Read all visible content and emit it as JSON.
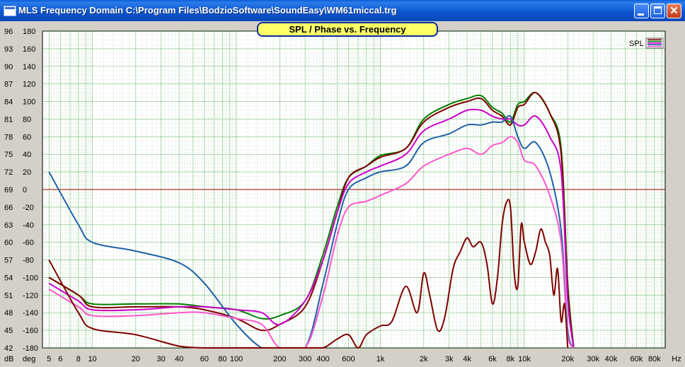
{
  "window": {
    "title": "MLS Frequency Domain  C:\\Program Files\\BodzioSoftware\\SoundEasy\\WM61miccal.trg"
  },
  "colors": {
    "plot_bg": "#FFFFFF",
    "grid_green": "#008000",
    "zero_line": "#A00000",
    "title_bg": "#FFFF66"
  },
  "chart_data": {
    "type": "line",
    "title": "SPL / Phase vs. Frequency",
    "x_scale": "log",
    "xlim": [
      4.5,
      95000
    ],
    "xlabel": "Hz",
    "x_ticks": [
      5,
      6,
      8,
      10,
      20,
      30,
      40,
      60,
      80,
      100,
      200,
      300,
      400,
      600,
      1000,
      2000,
      3000,
      4000,
      6000,
      8000,
      10000,
      20000,
      30000,
      40000,
      60000,
      80000
    ],
    "x_tick_labels": [
      "5",
      "6",
      "8",
      "10",
      "20",
      "30",
      "40",
      "60",
      "80",
      "100",
      "200",
      "300",
      "400",
      "600",
      "1k",
      "2k",
      "3k",
      "4k",
      "6k",
      "8k",
      "10k",
      "20k",
      "30k",
      "40k",
      "60k",
      "80k"
    ],
    "y_left_label": "dB",
    "y_left_ticks": [
      "96",
      "93",
      "90",
      "87",
      "84",
      "81",
      "78",
      "75",
      "72",
      "69",
      "66",
      "63",
      "60",
      "57",
      "54",
      "51",
      "48",
      "45",
      "42"
    ],
    "ylim_db": [
      42,
      96
    ],
    "y_right_label": "deg",
    "y_right_ticks": [
      "180",
      "160",
      "140",
      "120",
      "100",
      "80",
      "60",
      "40",
      "20",
      "0",
      "-20",
      "-40",
      "-60",
      "-80",
      "-100",
      "-120",
      "-140",
      "-160",
      "-180"
    ],
    "ylim_deg": [
      -180,
      180
    ],
    "legend": {
      "label": "SPL",
      "position": "top-right"
    },
    "series": [
      {
        "color": "#008000",
        "unit": "dB",
        "x": [
          5,
          8,
          10,
          20,
          40,
          60,
          100,
          150,
          200,
          300,
          400,
          500,
          600,
          800,
          1000,
          1500,
          2000,
          3000,
          4000,
          5000,
          6000,
          7000,
          8000,
          9000,
          10000,
          12000,
          15000,
          18000,
          20000,
          22000
        ],
        "values": [
          54,
          51,
          49.5,
          49.5,
          49.5,
          49,
          48.5,
          47,
          47.5,
          50,
          58,
          66,
          71,
          73,
          74.8,
          76,
          81,
          83.5,
          84.5,
          85,
          83,
          82,
          80.5,
          83.5,
          84,
          85.5,
          82,
          76,
          53,
          42
        ]
      },
      {
        "color": "#800000",
        "unit": "dB",
        "x": [
          5,
          8,
          10,
          20,
          40,
          60,
          100,
          150,
          200,
          300,
          400,
          500,
          600,
          800,
          1000,
          1500,
          2000,
          3000,
          4000,
          5000,
          6000,
          7000,
          8000,
          9000,
          10000,
          12000,
          15000,
          18000,
          20000,
          22000
        ],
        "values": [
          54,
          51,
          49,
          49,
          49,
          48.5,
          47,
          45,
          46,
          49,
          57,
          65,
          71,
          73,
          74.5,
          76,
          80.5,
          83,
          84,
          84.5,
          82.5,
          81.5,
          80,
          83,
          83.5,
          85.5,
          82,
          75,
          52,
          42
        ]
      },
      {
        "color": "#CC00CC",
        "unit": "dB",
        "x": [
          5,
          8,
          10,
          20,
          40,
          60,
          100,
          150,
          200,
          300,
          400,
          500,
          600,
          800,
          1000,
          1500,
          2000,
          3000,
          4000,
          5000,
          6000,
          7000,
          8000,
          9000,
          10000,
          12000,
          15000,
          18000,
          20000,
          22000
        ],
        "values": [
          53,
          50,
          48.5,
          48.5,
          49,
          49,
          48.5,
          48,
          46,
          50,
          57,
          65,
          70,
          72,
          73,
          75,
          79,
          81,
          82.5,
          82.5,
          81.5,
          81,
          81,
          80,
          80,
          81.5,
          78,
          72,
          50,
          42
        ]
      },
      {
        "color": "#2060A8",
        "unit": "dB",
        "x": [
          5,
          8,
          10,
          20,
          40,
          60,
          100,
          150,
          200,
          300,
          400,
          500,
          600,
          800,
          1000,
          1500,
          2000,
          3000,
          4000,
          5000,
          6000,
          7000,
          8000,
          9000,
          10000,
          12000,
          15000,
          18000,
          20000,
          22000
        ],
        "values": [
          72,
          63,
          60,
          58.5,
          56.5,
          53,
          46,
          40,
          36,
          40,
          53,
          63,
          69,
          71,
          72,
          73,
          77,
          78.5,
          80,
          80,
          80.5,
          80.5,
          81.5,
          78,
          76,
          77,
          72,
          62,
          45,
          42
        ]
      },
      {
        "color": "#FF55CC",
        "unit": "dB",
        "x": [
          5,
          8,
          10,
          20,
          40,
          60,
          100,
          150,
          200,
          300,
          400,
          500,
          600,
          800,
          1000,
          1500,
          2000,
          3000,
          4000,
          5000,
          6000,
          7000,
          8000,
          9000,
          10000,
          12000,
          15000,
          18000,
          20000,
          22000
        ],
        "values": [
          52,
          49,
          47.5,
          47.5,
          48,
          48,
          47,
          46,
          40,
          41,
          51,
          61,
          66,
          67,
          68,
          70,
          73,
          75,
          76,
          75,
          76.5,
          77,
          78,
          77,
          74,
          73,
          68,
          60,
          44,
          42
        ]
      },
      {
        "color": "#800000",
        "unit": "deg",
        "x": [
          5,
          8,
          10,
          20,
          40,
          60,
          80,
          100,
          150,
          200,
          300,
          400,
          500,
          600,
          700,
          800,
          1000,
          1200,
          1500,
          1800,
          2000,
          2200,
          2500,
          2800,
          3200,
          3600,
          4000,
          4400,
          5000,
          5500,
          6000,
          6500,
          7000,
          7500,
          8000,
          8500,
          9000,
          9500,
          10000,
          11000,
          12000,
          13000,
          14000,
          15000,
          16000,
          17000,
          18000,
          19000,
          20000
        ],
        "values": [
          -80,
          -140,
          -158,
          -165,
          -178,
          -185,
          -190,
          -195,
          -200,
          -200,
          -200,
          -195,
          -170,
          -165,
          -180,
          -165,
          -155,
          -150,
          -110,
          -140,
          -95,
          -120,
          -160,
          -145,
          -90,
          -70,
          -55,
          -65,
          -60,
          -85,
          -130,
          -100,
          -40,
          -15,
          -20,
          -95,
          -110,
          -40,
          -60,
          -85,
          -70,
          -45,
          -60,
          -75,
          -120,
          -90,
          -150,
          -130,
          -200
        ]
      }
    ]
  }
}
